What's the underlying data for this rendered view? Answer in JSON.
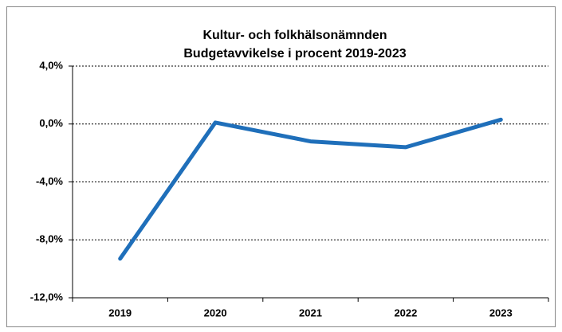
{
  "chart_data": {
    "type": "line",
    "title": "Kultur- och folkhälsonämnden",
    "subtitle": "Budgetavvikelse  i procent 2019-2023",
    "categories": [
      "2019",
      "2020",
      "2021",
      "2022",
      "2023"
    ],
    "series": [
      {
        "name": "Budgetavvikelse",
        "color": "#1f6fba",
        "values": [
          -9.3,
          0.1,
          -1.2,
          -1.6,
          0.3
        ]
      }
    ],
    "ylim": [
      -12,
      4
    ],
    "yticks": [
      {
        "value": -12,
        "label": "-12,0%"
      },
      {
        "value": -8,
        "label": "-8,0%"
      },
      {
        "value": -4,
        "label": "-4,0%"
      },
      {
        "value": 0,
        "label": "0,0%"
      },
      {
        "value": 4,
        "label": "4,0%"
      }
    ],
    "grid": true,
    "legend": false
  }
}
